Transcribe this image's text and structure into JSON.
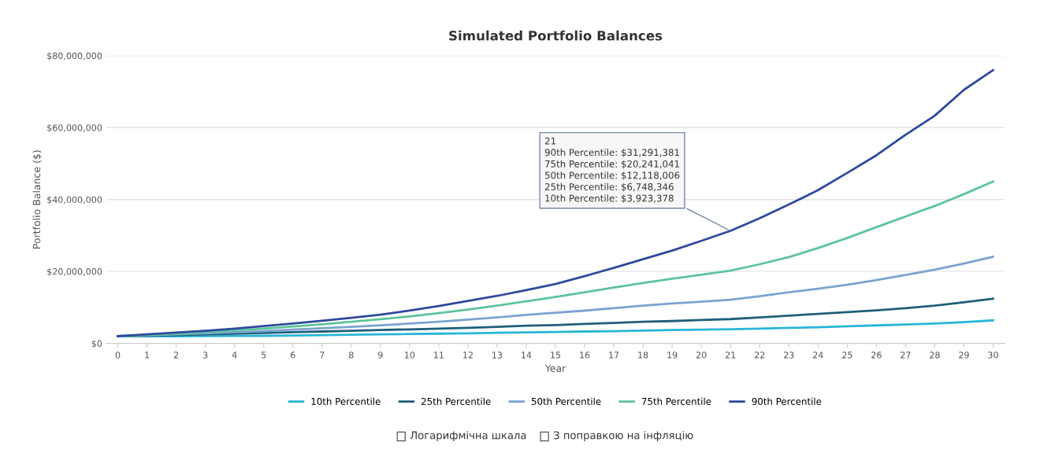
{
  "chart_data": {
    "type": "line",
    "title": "Simulated Portfolio Balances",
    "xlabel": "Year",
    "ylabel": "Portfolio Balance ($)",
    "x": [
      0,
      1,
      2,
      3,
      4,
      5,
      6,
      7,
      8,
      9,
      10,
      11,
      12,
      13,
      14,
      15,
      16,
      17,
      18,
      19,
      20,
      21,
      22,
      23,
      24,
      25,
      26,
      27,
      28,
      29,
      30
    ],
    "series": [
      {
        "name": "10th Percentile",
        "color": "#29b6d6",
        "values": [
          2000000,
          1950000,
          1950000,
          2000000,
          2050000,
          2100000,
          2200000,
          2300000,
          2400000,
          2500000,
          2600000,
          2700000,
          2800000,
          2950000,
          3050000,
          3150000,
          3300000,
          3400000,
          3550000,
          3700000,
          3800000,
          3923378,
          4100000,
          4300000,
          4500000,
          4750000,
          5000000,
          5250000,
          5500000,
          5900000,
          6400000
        ]
      },
      {
        "name": "25th Percentile",
        "color": "#1f5f7a",
        "values": [
          2000000,
          2100000,
          2300000,
          2500000,
          2700000,
          2900000,
          3100000,
          3300000,
          3500000,
          3700000,
          3900000,
          4100000,
          4300000,
          4600000,
          4900000,
          5100000,
          5400000,
          5700000,
          6000000,
          6200000,
          6500000,
          6748346,
          7200000,
          7700000,
          8200000,
          8700000,
          9200000,
          9800000,
          10500000,
          11400000,
          12400000
        ]
      },
      {
        "name": "50th Percentile",
        "color": "#7aa3d0",
        "values": [
          2000000,
          2200000,
          2500000,
          2800000,
          3100000,
          3400000,
          3800000,
          4200000,
          4600000,
          5000000,
          5500000,
          6000000,
          6600000,
          7200000,
          7900000,
          8500000,
          9100000,
          9800000,
          10500000,
          11100000,
          11600000,
          12118006,
          13100000,
          14200000,
          15200000,
          16300000,
          17600000,
          19000000,
          20500000,
          22200000,
          24100000
        ]
      },
      {
        "name": "75th Percentile",
        "color": "#5cc49a",
        "values": [
          2000000,
          2300000,
          2700000,
          3100000,
          3600000,
          4100000,
          4700000,
          5300000,
          6000000,
          6700000,
          7500000,
          8400000,
          9400000,
          10500000,
          11700000,
          12900000,
          14200000,
          15500000,
          16800000,
          18000000,
          19100000,
          20241041,
          22000000,
          24000000,
          26500000,
          29300000,
          32300000,
          35300000,
          38200000,
          41500000,
          45000000
        ]
      },
      {
        "name": "90th Percentile",
        "color": "#2e4a9e",
        "values": [
          2000000,
          2500000,
          3000000,
          3500000,
          4100000,
          4800000,
          5500000,
          6300000,
          7100000,
          8000000,
          9100000,
          10400000,
          11800000,
          13200000,
          14800000,
          16500000,
          18700000,
          21000000,
          23400000,
          25800000,
          28500000,
          31291381,
          34800000,
          38600000,
          42600000,
          47400000,
          52300000,
          58000000,
          63300000,
          70500000,
          76000000
        ]
      }
    ],
    "xlim": [
      -0.4,
      30.4
    ],
    "xticks": [
      0,
      1,
      2,
      3,
      4,
      5,
      6,
      7,
      8,
      9,
      10,
      11,
      12,
      13,
      14,
      15,
      16,
      17,
      18,
      19,
      20,
      21,
      22,
      23,
      24,
      25,
      26,
      27,
      28,
      29,
      30
    ],
    "ylim": [
      0,
      80000000
    ],
    "yticks": [
      {
        "value": 0,
        "label": "$0"
      },
      {
        "value": 20000000,
        "label": "$20,000,000"
      },
      {
        "value": 40000000,
        "label": "$40,000,000"
      },
      {
        "value": 60000000,
        "label": "$60,000,000"
      },
      {
        "value": 80000000,
        "label": "$80,000,000"
      }
    ],
    "grid": "y",
    "legend": "bottom",
    "annotations": [
      {
        "text": "21\n90th Percentile: $31,291,381\n75th Percentile: $20,241,041\n50th Percentile: $12,118,006\n25th Percentile: $6,748,346\n10th Percentile: $3,923,378",
        "x": 21,
        "y": 31291381
      },
      "Логарифмічна шкала",
      "З поправкою на інфляцію"
    ]
  }
}
